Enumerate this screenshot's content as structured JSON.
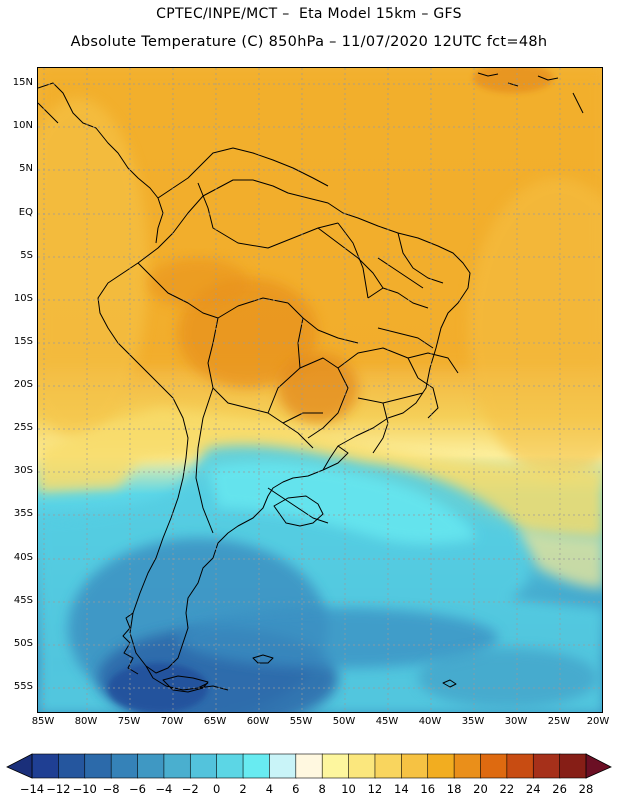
{
  "header": {
    "title_line1": "CPTEC/INPE/MCT –  Eta Model 15km – GFS",
    "title_line2": "Absolute Temperature (C) 850hPa – 11/07/2020 12UTC fct=48h"
  },
  "map": {
    "lat_labels": [
      "15N",
      "10N",
      "5N",
      "EQ",
      "5S",
      "10S",
      "15S",
      "20S",
      "25S",
      "30S",
      "35S",
      "40S",
      "45S",
      "50S",
      "55S"
    ],
    "lon_labels": [
      "85W",
      "80W",
      "75W",
      "70W",
      "65W",
      "60W",
      "55W",
      "50W",
      "45W",
      "40W",
      "35W",
      "30W",
      "25W",
      "20W"
    ],
    "gridline_color": "#9a9a9a"
  },
  "colorbar": {
    "labels": [
      "-14",
      "-12",
      "-10",
      "-8",
      "-6",
      "-4",
      "-2",
      "0",
      "2",
      "4",
      "6",
      "8",
      "10",
      "12",
      "14",
      "16",
      "18",
      "20",
      "22",
      "24",
      "26",
      "28"
    ],
    "colors": [
      "#1f3f93",
      "#25569e",
      "#2c6aaa",
      "#3582b8",
      "#3f98c3",
      "#4aafcf",
      "#53c3dc",
      "#5cd6e5",
      "#68ebf1",
      "#c9f4f8",
      "#fff8e0",
      "#fdf69e",
      "#fbe77d",
      "#f9d55e",
      "#f6c243",
      "#f2ad20",
      "#ea8f1a",
      "#de6a10",
      "#c84c12",
      "#a6301a",
      "#861e16"
    ],
    "under_color": "#1a2f7a",
    "over_color": "#6b0f24"
  }
}
